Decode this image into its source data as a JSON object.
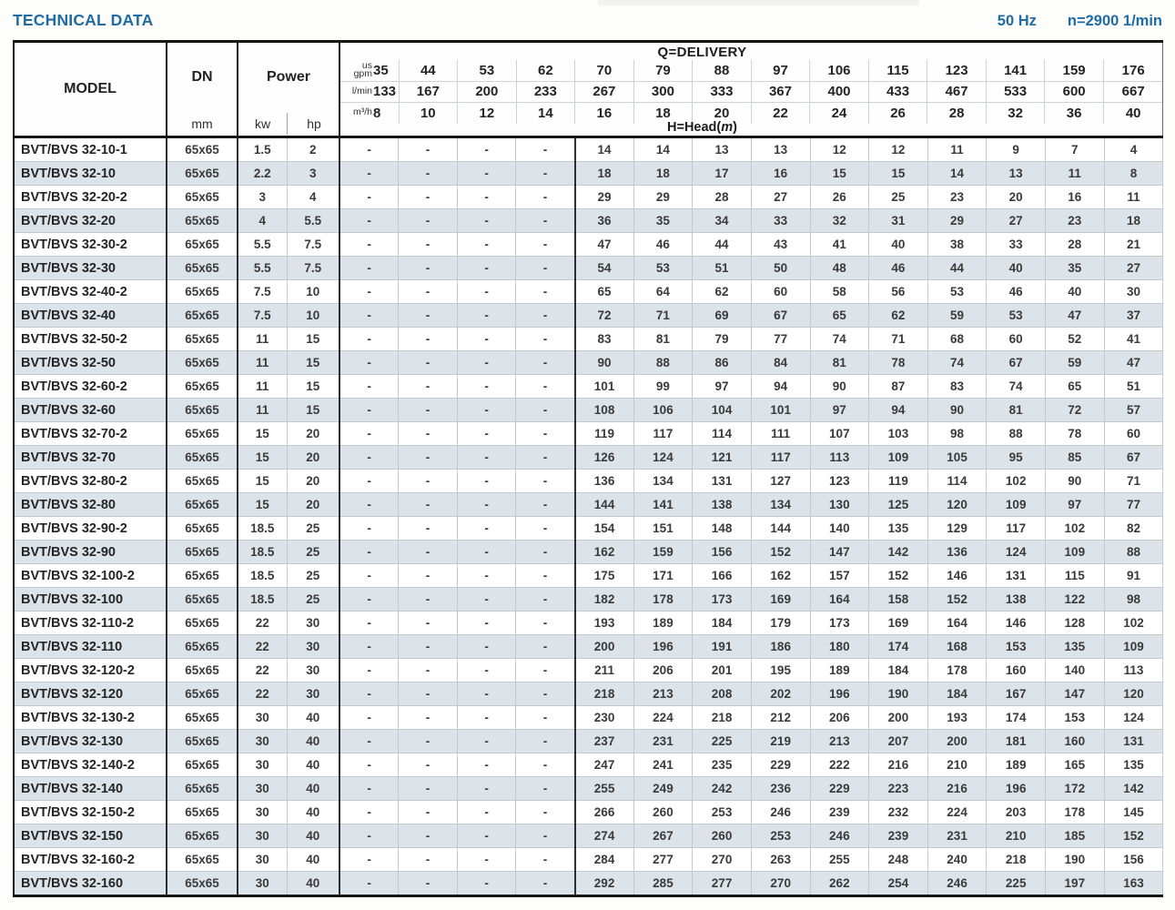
{
  "page": {
    "title": "TECHNICAL DATA",
    "frequency": "50 Hz",
    "speed": "n=2900 1/min"
  },
  "table": {
    "model_header": "MODEL",
    "dn_header": "DN",
    "dn_unit": "mm",
    "power_header": "Power",
    "power_unit_kw": "kw",
    "power_unit_hp": "hp",
    "delivery_header": "Q=DELIVERY",
    "head_label": {
      "prefix": "H=Head(",
      "m": "m",
      "suffix": ")"
    },
    "units": [
      {
        "label": "us\ngpm",
        "values": [
          "35",
          "44",
          "53",
          "62",
          "70",
          "79",
          "88",
          "97",
          "106",
          "115",
          "123",
          "141",
          "159",
          "176"
        ]
      },
      {
        "label": "l/min",
        "values": [
          "133",
          "167",
          "200",
          "233",
          "267",
          "300",
          "333",
          "367",
          "400",
          "433",
          "467",
          "533",
          "600",
          "667"
        ]
      },
      {
        "label": "m³/h",
        "values": [
          "8",
          "10",
          "12",
          "14",
          "16",
          "18",
          "20",
          "22",
          "24",
          "26",
          "28",
          "32",
          "36",
          "40"
        ]
      }
    ],
    "rows": [
      {
        "model": "BVT/BVS 32-10-1",
        "dn": "65x65",
        "kw": "1.5",
        "hp": "2",
        "heads": [
          "-",
          "-",
          "-",
          "-",
          "14",
          "14",
          "13",
          "13",
          "12",
          "12",
          "11",
          "9",
          "7",
          "4"
        ]
      },
      {
        "model": "BVT/BVS 32-10",
        "dn": "65x65",
        "kw": "2.2",
        "hp": "3",
        "heads": [
          "-",
          "-",
          "-",
          "-",
          "18",
          "18",
          "17",
          "16",
          "15",
          "15",
          "14",
          "13",
          "11",
          "8"
        ]
      },
      {
        "model": "BVT/BVS 32-20-2",
        "dn": "65x65",
        "kw": "3",
        "hp": "4",
        "heads": [
          "-",
          "-",
          "-",
          "-",
          "29",
          "29",
          "28",
          "27",
          "26",
          "25",
          "23",
          "20",
          "16",
          "11"
        ]
      },
      {
        "model": "BVT/BVS 32-20",
        "dn": "65x65",
        "kw": "4",
        "hp": "5.5",
        "heads": [
          "-",
          "-",
          "-",
          "-",
          "36",
          "35",
          "34",
          "33",
          "32",
          "31",
          "29",
          "27",
          "23",
          "18"
        ]
      },
      {
        "model": "BVT/BVS 32-30-2",
        "dn": "65x65",
        "kw": "5.5",
        "hp": "7.5",
        "heads": [
          "-",
          "-",
          "-",
          "-",
          "47",
          "46",
          "44",
          "43",
          "41",
          "40",
          "38",
          "33",
          "28",
          "21"
        ]
      },
      {
        "model": "BVT/BVS 32-30",
        "dn": "65x65",
        "kw": "5.5",
        "hp": "7.5",
        "heads": [
          "-",
          "-",
          "-",
          "-",
          "54",
          "53",
          "51",
          "50",
          "48",
          "46",
          "44",
          "40",
          "35",
          "27"
        ]
      },
      {
        "model": "BVT/BVS 32-40-2",
        "dn": "65x65",
        "kw": "7.5",
        "hp": "10",
        "heads": [
          "-",
          "-",
          "-",
          "-",
          "65",
          "64",
          "62",
          "60",
          "58",
          "56",
          "53",
          "46",
          "40",
          "30"
        ]
      },
      {
        "model": "BVT/BVS 32-40",
        "dn": "65x65",
        "kw": "7.5",
        "hp": "10",
        "heads": [
          "-",
          "-",
          "-",
          "-",
          "72",
          "71",
          "69",
          "67",
          "65",
          "62",
          "59",
          "53",
          "47",
          "37"
        ]
      },
      {
        "model": "BVT/BVS 32-50-2",
        "dn": "65x65",
        "kw": "11",
        "hp": "15",
        "heads": [
          "-",
          "-",
          "-",
          "-",
          "83",
          "81",
          "79",
          "77",
          "74",
          "71",
          "68",
          "60",
          "52",
          "41"
        ]
      },
      {
        "model": "BVT/BVS 32-50",
        "dn": "65x65",
        "kw": "11",
        "hp": "15",
        "heads": [
          "-",
          "-",
          "-",
          "-",
          "90",
          "88",
          "86",
          "84",
          "81",
          "78",
          "74",
          "67",
          "59",
          "47"
        ]
      },
      {
        "model": "BVT/BVS 32-60-2",
        "dn": "65x65",
        "kw": "11",
        "hp": "15",
        "heads": [
          "-",
          "-",
          "-",
          "-",
          "101",
          "99",
          "97",
          "94",
          "90",
          "87",
          "83",
          "74",
          "65",
          "51"
        ]
      },
      {
        "model": "BVT/BVS 32-60",
        "dn": "65x65",
        "kw": "11",
        "hp": "15",
        "heads": [
          "-",
          "-",
          "-",
          "-",
          "108",
          "106",
          "104",
          "101",
          "97",
          "94",
          "90",
          "81",
          "72",
          "57"
        ]
      },
      {
        "model": "BVT/BVS 32-70-2",
        "dn": "65x65",
        "kw": "15",
        "hp": "20",
        "heads": [
          "-",
          "-",
          "-",
          "-",
          "119",
          "117",
          "114",
          "111",
          "107",
          "103",
          "98",
          "88",
          "78",
          "60"
        ]
      },
      {
        "model": "BVT/BVS 32-70",
        "dn": "65x65",
        "kw": "15",
        "hp": "20",
        "heads": [
          "-",
          "-",
          "-",
          "-",
          "126",
          "124",
          "121",
          "117",
          "113",
          "109",
          "105",
          "95",
          "85",
          "67"
        ]
      },
      {
        "model": "BVT/BVS 32-80-2",
        "dn": "65x65",
        "kw": "15",
        "hp": "20",
        "heads": [
          "-",
          "-",
          "-",
          "-",
          "136",
          "134",
          "131",
          "127",
          "123",
          "119",
          "114",
          "102",
          "90",
          "71"
        ]
      },
      {
        "model": "BVT/BVS 32-80",
        "dn": "65x65",
        "kw": "15",
        "hp": "20",
        "heads": [
          "-",
          "-",
          "-",
          "-",
          "144",
          "141",
          "138",
          "134",
          "130",
          "125",
          "120",
          "109",
          "97",
          "77"
        ]
      },
      {
        "model": "BVT/BVS 32-90-2",
        "dn": "65x65",
        "kw": "18.5",
        "hp": "25",
        "heads": [
          "-",
          "-",
          "-",
          "-",
          "154",
          "151",
          "148",
          "144",
          "140",
          "135",
          "129",
          "117",
          "102",
          "82"
        ]
      },
      {
        "model": "BVT/BVS 32-90",
        "dn": "65x65",
        "kw": "18.5",
        "hp": "25",
        "heads": [
          "-",
          "-",
          "-",
          "-",
          "162",
          "159",
          "156",
          "152",
          "147",
          "142",
          "136",
          "124",
          "109",
          "88"
        ]
      },
      {
        "model": "BVT/BVS 32-100-2",
        "dn": "65x65",
        "kw": "18.5",
        "hp": "25",
        "heads": [
          "-",
          "-",
          "-",
          "-",
          "175",
          "171",
          "166",
          "162",
          "157",
          "152",
          "146",
          "131",
          "115",
          "91"
        ]
      },
      {
        "model": "BVT/BVS 32-100",
        "dn": "65x65",
        "kw": "18.5",
        "hp": "25",
        "heads": [
          "-",
          "-",
          "-",
          "-",
          "182",
          "178",
          "173",
          "169",
          "164",
          "158",
          "152",
          "138",
          "122",
          "98"
        ]
      },
      {
        "model": "BVT/BVS 32-110-2",
        "dn": "65x65",
        "kw": "22",
        "hp": "30",
        "heads": [
          "-",
          "-",
          "-",
          "-",
          "193",
          "189",
          "184",
          "179",
          "173",
          "169",
          "164",
          "146",
          "128",
          "102"
        ]
      },
      {
        "model": "BVT/BVS 32-110",
        "dn": "65x65",
        "kw": "22",
        "hp": "30",
        "heads": [
          "-",
          "-",
          "-",
          "-",
          "200",
          "196",
          "191",
          "186",
          "180",
          "174",
          "168",
          "153",
          "135",
          "109"
        ]
      },
      {
        "model": "BVT/BVS 32-120-2",
        "dn": "65x65",
        "kw": "22",
        "hp": "30",
        "heads": [
          "-",
          "-",
          "-",
          "-",
          "211",
          "206",
          "201",
          "195",
          "189",
          "184",
          "178",
          "160",
          "140",
          "113"
        ]
      },
      {
        "model": "BVT/BVS 32-120",
        "dn": "65x65",
        "kw": "22",
        "hp": "30",
        "heads": [
          "-",
          "-",
          "-",
          "-",
          "218",
          "213",
          "208",
          "202",
          "196",
          "190",
          "184",
          "167",
          "147",
          "120"
        ]
      },
      {
        "model": "BVT/BVS 32-130-2",
        "dn": "65x65",
        "kw": "30",
        "hp": "40",
        "heads": [
          "-",
          "-",
          "-",
          "-",
          "230",
          "224",
          "218",
          "212",
          "206",
          "200",
          "193",
          "174",
          "153",
          "124"
        ]
      },
      {
        "model": "BVT/BVS 32-130",
        "dn": "65x65",
        "kw": "30",
        "hp": "40",
        "heads": [
          "-",
          "-",
          "-",
          "-",
          "237",
          "231",
          "225",
          "219",
          "213",
          "207",
          "200",
          "181",
          "160",
          "131"
        ]
      },
      {
        "model": "BVT/BVS 32-140-2",
        "dn": "65x65",
        "kw": "30",
        "hp": "40",
        "heads": [
          "-",
          "-",
          "-",
          "-",
          "247",
          "241",
          "235",
          "229",
          "222",
          "216",
          "210",
          "189",
          "165",
          "135"
        ]
      },
      {
        "model": "BVT/BVS 32-140",
        "dn": "65x65",
        "kw": "30",
        "hp": "40",
        "heads": [
          "-",
          "-",
          "-",
          "-",
          "255",
          "249",
          "242",
          "236",
          "229",
          "223",
          "216",
          "196",
          "172",
          "142"
        ]
      },
      {
        "model": "BVT/BVS 32-150-2",
        "dn": "65x65",
        "kw": "30",
        "hp": "40",
        "heads": [
          "-",
          "-",
          "-",
          "-",
          "266",
          "260",
          "253",
          "246",
          "239",
          "232",
          "224",
          "203",
          "178",
          "145"
        ]
      },
      {
        "model": "BVT/BVS 32-150",
        "dn": "65x65",
        "kw": "30",
        "hp": "40",
        "heads": [
          "-",
          "-",
          "-",
          "-",
          "274",
          "267",
          "260",
          "253",
          "246",
          "239",
          "231",
          "210",
          "185",
          "152"
        ]
      },
      {
        "model": "BVT/BVS 32-160-2",
        "dn": "65x65",
        "kw": "30",
        "hp": "40",
        "heads": [
          "-",
          "-",
          "-",
          "-",
          "284",
          "277",
          "270",
          "263",
          "255",
          "248",
          "240",
          "218",
          "190",
          "156"
        ]
      },
      {
        "model": "BVT/BVS 32-160",
        "dn": "65x65",
        "kw": "30",
        "hp": "40",
        "heads": [
          "-",
          "-",
          "-",
          "-",
          "292",
          "285",
          "277",
          "270",
          "262",
          "254",
          "246",
          "225",
          "197",
          "163"
        ]
      }
    ]
  }
}
